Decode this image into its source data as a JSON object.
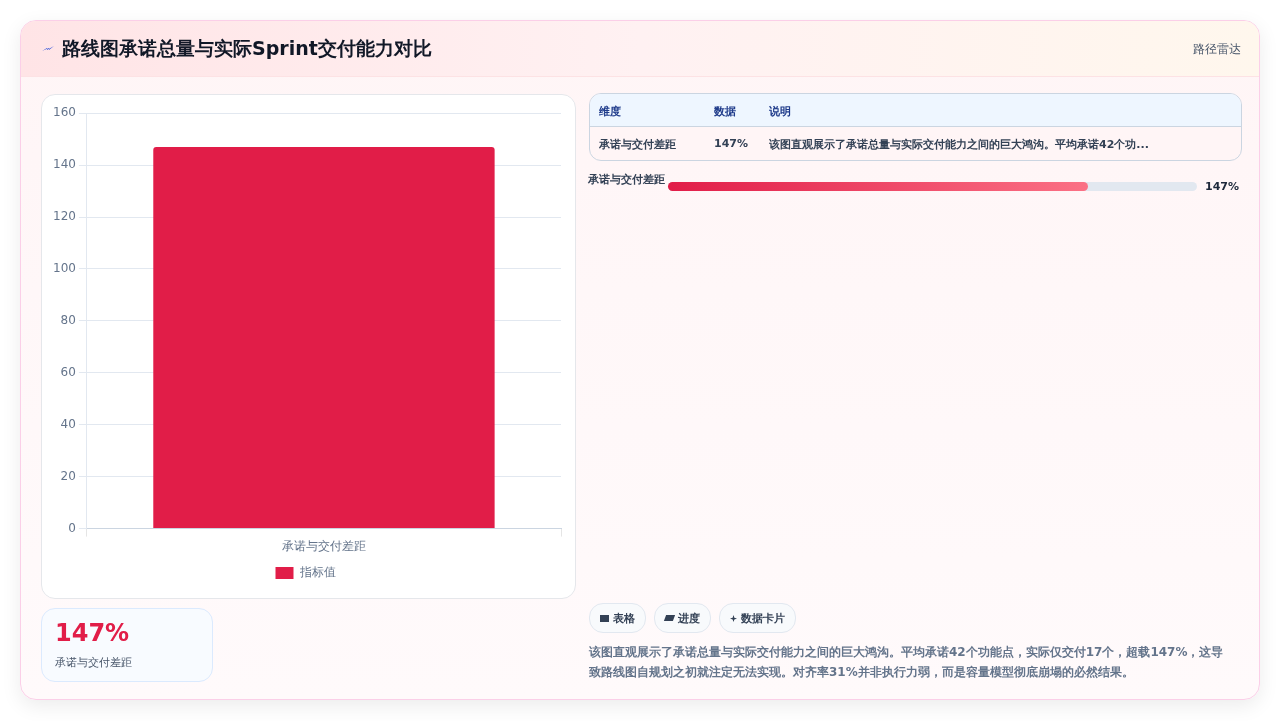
{
  "chart_data": [
    {
      "type": "bar",
      "title": "路线图承诺总量与实际Sprint交付能力对比",
      "categories": [
        "承诺与交付差距"
      ],
      "series": [
        {
          "name": "指标值",
          "color": "#e11d48",
          "values": [
            147
          ]
        }
      ],
      "ylim": [
        0,
        160
      ],
      "yticks": [
        0,
        20,
        40,
        60,
        80,
        100,
        120,
        140,
        160
      ],
      "grid": true,
      "legend": "bottom"
    },
    {
      "type": "other",
      "annotations": [
        "路径雷达",
        "维度",
        "数据",
        "说明",
        "承诺与交付差距",
        "147%",
        "该图直观展示了承诺总量与实际交付能力之间的巨大鸿沟。平均承诺42个功...",
        "承诺与交付差距",
        "147%",
        "147%",
        "承诺与交付差距",
        "表格",
        "进度",
        "数据卡片",
        "该图直观展示了承诺总量与实际交付能力之间的巨大鸿沟。平均承诺42个功能点，实际仅交付17个，超载147%，这导致路线图自规划之初就注定无法实现。对齐率31%并非执行力弱，而是容量模型彻底崩塌的必然结果。"
      ]
    }
  ]
}
